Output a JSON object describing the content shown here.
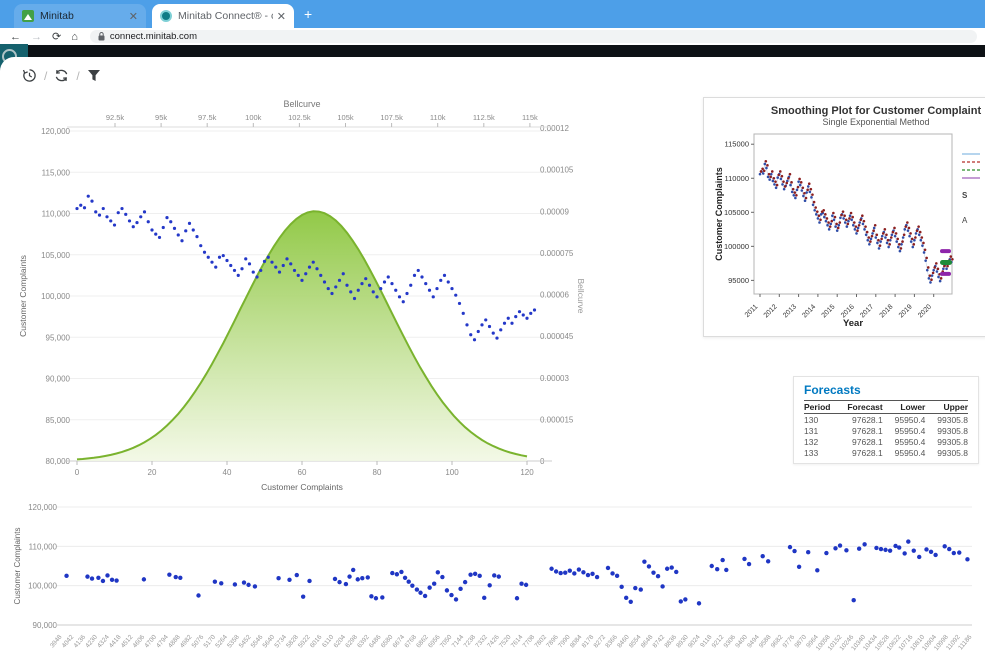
{
  "browser": {
    "tabs": [
      {
        "title": "Minitab"
      },
      {
        "title": "Minitab Connect® - connect.min"
      }
    ],
    "new_tab_label": "+",
    "url": "connect.minitab.com"
  },
  "toolbar": {
    "icons": [
      "history",
      "sync",
      "filter"
    ],
    "separator": "/"
  },
  "forecasts": {
    "title": "Forecasts",
    "headers": [
      "Period",
      "Forecast",
      "Lower",
      "Upper"
    ],
    "rows": [
      [
        "130",
        "97628.1",
        "95950.4",
        "99305.8"
      ],
      [
        "131",
        "97628.1",
        "95950.4",
        "99305.8"
      ],
      [
        "132",
        "97628.1",
        "95950.4",
        "99305.8"
      ],
      [
        "133",
        "97628.1",
        "95950.4",
        "99305.8"
      ]
    ]
  },
  "complaints_series_k": [
    110.6,
    111.0,
    110.7,
    112.1,
    111.5,
    110.2,
    109.8,
    110.6,
    109.6,
    109.1,
    108.6,
    110.1,
    110.6,
    109.9,
    109.1,
    108.4,
    108.9,
    109.6,
    110.2,
    109.0,
    108.0,
    107.5,
    107.1,
    108.3,
    109.5,
    109.0,
    108.2,
    107.4,
    106.7,
    107.9,
    108.8,
    108.0,
    107.2,
    106.1,
    105.3,
    104.7,
    104.1,
    103.5,
    104.7,
    104.9,
    104.3,
    103.7,
    103.1,
    102.5,
    103.3,
    104.5,
    103.9,
    102.9,
    102.3,
    103.1,
    104.2,
    104.7,
    104.1,
    103.5,
    102.9,
    103.7,
    104.5,
    103.9,
    103.1,
    102.5,
    101.9,
    102.7,
    103.5,
    104.1,
    103.3,
    102.5,
    101.7,
    100.9,
    100.3,
    101.1,
    101.9,
    102.7,
    101.3,
    100.5,
    99.7,
    100.7,
    101.5,
    102.1,
    101.3,
    100.5,
    99.9,
    100.9,
    101.7,
    102.3,
    101.5,
    100.7,
    99.9,
    99.3,
    100.3,
    101.3,
    102.5,
    103.1,
    102.3,
    101.5,
    100.7,
    99.9,
    100.9,
    101.9,
    102.5,
    101.7,
    100.9,
    100.1,
    99.1,
    97.9,
    96.5,
    95.3,
    94.7,
    95.7,
    96.5,
    97.1,
    96.3,
    95.5,
    94.9,
    95.9,
    96.7,
    97.3,
    96.7,
    97.5,
    98.1,
    97.7,
    97.3,
    97.9,
    98.3
  ],
  "chart_data": [
    {
      "id": "bellcurve_scatter",
      "type": "scatter+area",
      "top_axis_title": "Bellcurve",
      "top_ticks": [
        "92.5k",
        "95k",
        "97.5k",
        "100k",
        "102.5k",
        "105k",
        "107.5k",
        "110k",
        "112.5k",
        "115k"
      ],
      "ylabel_left": "Customer Complaints",
      "y_ticks_left": [
        "120,000",
        "115,000",
        "110,000",
        "105,000",
        "100,000",
        "95,000",
        "90,000",
        "85,000",
        "80,000"
      ],
      "ylim_left_k": [
        80,
        120
      ],
      "ylabel_right": "Bellcurve",
      "y_ticks_right": [
        "0.00012",
        "0.000105",
        "0.00009",
        "0.000075",
        "0.00006",
        "0.000045",
        "0.00003",
        "0.000015",
        "0"
      ],
      "ylim_right": [
        0,
        0.00012
      ],
      "xlabel": "Customer Complaints",
      "x_ticks": [
        0,
        20,
        40,
        60,
        80,
        100,
        120
      ],
      "xlim": [
        0,
        120
      ],
      "bell": {
        "mean": 63.5,
        "sd": 20,
        "peak": 9e-05
      },
      "point_color": "#2438c8",
      "bell_stroke": "#7ab32e",
      "bell_fill_top": "#8cc63e",
      "bell_fill_bottom": "#f2f8e4"
    },
    {
      "id": "smoothing_plot",
      "type": "scatter",
      "title": "Smoothing Plot for Customer Complaint",
      "subtitle": "Single Exponential Method",
      "xlabel": "Year",
      "ylabel": "Customer Complaints",
      "x_ticks": [
        2011,
        2012,
        2013,
        2014,
        2015,
        2016,
        2017,
        2018,
        2019,
        2020
      ],
      "y_ticks": [
        95000,
        100000,
        105000,
        110000,
        115000
      ],
      "ylim": [
        93000,
        116500
      ],
      "actual_color": "#2f4da8",
      "fit_color": "#8c1f1f",
      "forecast_color": "#1f8b3a",
      "pi_color": "#8e24aa",
      "forecast_value_k": 97.628,
      "pi_upper_k": 99.306,
      "pi_lower_k": 95.95,
      "legend_line_colors": [
        "#9ec7e8",
        "#c0504d",
        "#4ea24e",
        "#b07cc6"
      ],
      "legend_fragments": [
        "S",
        "A"
      ]
    },
    {
      "id": "bottom_scatter",
      "type": "scatter",
      "ylabel": "Customer Complaints",
      "y_ticks": [
        "120,000",
        "110,000",
        "100,000",
        "90,000"
      ],
      "ylim_k": [
        90,
        120
      ],
      "x_start": 3948,
      "x_step": 94,
      "x_count": 78,
      "point_color": "#1f36c4",
      "points": [
        [
          0.005,
          102.5
        ],
        [
          0.028,
          102.3
        ],
        [
          0.033,
          101.8
        ],
        [
          0.04,
          102.0
        ],
        [
          0.045,
          101.2
        ],
        [
          0.05,
          102.6
        ],
        [
          0.055,
          101.5
        ],
        [
          0.06,
          101.3
        ],
        [
          0.09,
          101.6
        ],
        [
          0.118,
          102.8
        ],
        [
          0.125,
          102.2
        ],
        [
          0.13,
          102.0
        ],
        [
          0.15,
          97.5
        ],
        [
          0.168,
          101.0
        ],
        [
          0.175,
          100.6
        ],
        [
          0.19,
          100.3
        ],
        [
          0.2,
          100.8
        ],
        [
          0.205,
          100.2
        ],
        [
          0.212,
          99.8
        ],
        [
          0.238,
          101.9
        ],
        [
          0.25,
          101.5
        ],
        [
          0.258,
          102.7
        ],
        [
          0.265,
          97.2
        ],
        [
          0.272,
          101.2
        ],
        [
          0.3,
          101.7
        ],
        [
          0.305,
          100.9
        ],
        [
          0.312,
          100.4
        ],
        [
          0.316,
          102.3
        ],
        [
          0.32,
          104.0
        ],
        [
          0.325,
          101.6
        ],
        [
          0.33,
          101.9
        ],
        [
          0.336,
          102.1
        ],
        [
          0.34,
          97.3
        ],
        [
          0.345,
          96.8
        ],
        [
          0.352,
          97.0
        ],
        [
          0.363,
          103.2
        ],
        [
          0.368,
          102.9
        ],
        [
          0.373,
          103.5
        ],
        [
          0.377,
          102.0
        ],
        [
          0.381,
          101.0
        ],
        [
          0.385,
          100.0
        ],
        [
          0.39,
          99.0
        ],
        [
          0.394,
          98.2
        ],
        [
          0.399,
          97.4
        ],
        [
          0.404,
          99.5
        ],
        [
          0.409,
          100.5
        ],
        [
          0.413,
          103.4
        ],
        [
          0.418,
          102.2
        ],
        [
          0.423,
          98.8
        ],
        [
          0.428,
          97.6
        ],
        [
          0.433,
          96.5
        ],
        [
          0.438,
          99.2
        ],
        [
          0.443,
          100.9
        ],
        [
          0.449,
          102.8
        ],
        [
          0.454,
          103.0
        ],
        [
          0.459,
          102.5
        ],
        [
          0.464,
          96.9
        ],
        [
          0.47,
          100.1
        ],
        [
          0.475,
          102.6
        ],
        [
          0.48,
          102.3
        ],
        [
          0.5,
          96.8
        ],
        [
          0.505,
          100.5
        ],
        [
          0.51,
          100.2
        ],
        [
          0.538,
          104.3
        ],
        [
          0.543,
          103.6
        ],
        [
          0.548,
          103.2
        ],
        [
          0.553,
          103.3
        ],
        [
          0.558,
          103.8
        ],
        [
          0.563,
          103.1
        ],
        [
          0.568,
          104.1
        ],
        [
          0.573,
          103.4
        ],
        [
          0.578,
          102.7
        ],
        [
          0.583,
          103.0
        ],
        [
          0.588,
          102.2
        ],
        [
          0.6,
          104.5
        ],
        [
          0.605,
          103.1
        ],
        [
          0.61,
          102.5
        ],
        [
          0.615,
          99.7
        ],
        [
          0.62,
          96.9
        ],
        [
          0.625,
          95.9
        ],
        [
          0.63,
          99.4
        ],
        [
          0.636,
          99.0
        ],
        [
          0.64,
          106.1
        ],
        [
          0.645,
          104.9
        ],
        [
          0.65,
          103.3
        ],
        [
          0.655,
          102.4
        ],
        [
          0.66,
          99.8
        ],
        [
          0.665,
          104.3
        ],
        [
          0.67,
          104.6
        ],
        [
          0.675,
          103.5
        ],
        [
          0.68,
          96.0
        ],
        [
          0.685,
          96.5
        ],
        [
          0.7,
          95.5
        ],
        [
          0.714,
          105.0
        ],
        [
          0.72,
          104.2
        ],
        [
          0.726,
          106.5
        ],
        [
          0.73,
          104.0
        ],
        [
          0.75,
          106.8
        ],
        [
          0.755,
          105.5
        ],
        [
          0.77,
          107.5
        ],
        [
          0.776,
          106.2
        ],
        [
          0.8,
          109.8
        ],
        [
          0.805,
          108.8
        ],
        [
          0.81,
          104.8
        ],
        [
          0.82,
          108.5
        ],
        [
          0.83,
          103.9
        ],
        [
          0.84,
          108.3
        ],
        [
          0.85,
          109.5
        ],
        [
          0.855,
          110.2
        ],
        [
          0.862,
          109.0
        ],
        [
          0.87,
          96.3
        ],
        [
          0.876,
          109.4
        ],
        [
          0.882,
          110.5
        ],
        [
          0.895,
          109.6
        ],
        [
          0.9,
          109.3
        ],
        [
          0.905,
          109.1
        ],
        [
          0.91,
          108.9
        ],
        [
          0.916,
          110.1
        ],
        [
          0.92,
          109.7
        ],
        [
          0.926,
          108.2
        ],
        [
          0.93,
          111.2
        ],
        [
          0.936,
          108.9
        ],
        [
          0.942,
          107.3
        ],
        [
          0.95,
          109.2
        ],
        [
          0.955,
          108.6
        ],
        [
          0.96,
          107.8
        ],
        [
          0.97,
          110.0
        ],
        [
          0.975,
          109.3
        ],
        [
          0.98,
          108.3
        ],
        [
          0.986,
          108.4
        ],
        [
          0.995,
          106.7
        ]
      ]
    }
  ]
}
